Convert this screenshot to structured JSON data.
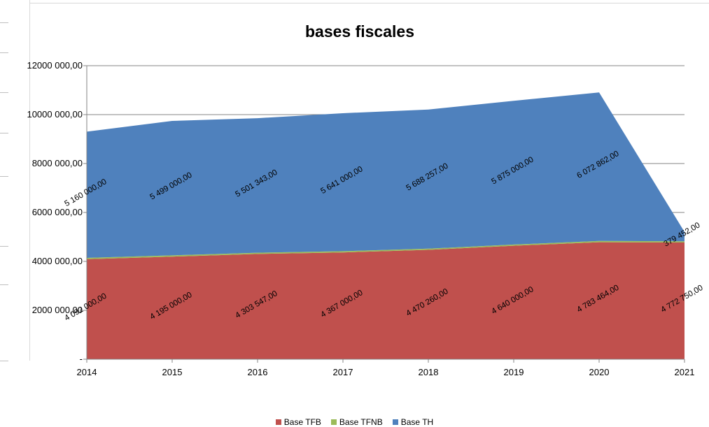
{
  "chart_data": {
    "type": "area",
    "stacked": true,
    "title": "bases fiscales",
    "categories": [
      "2014",
      "2015",
      "2016",
      "2017",
      "2018",
      "2019",
      "2020",
      "2021"
    ],
    "y_ticks": [
      "-",
      "2000 000,00",
      "4000 000,00",
      "6000 000,00",
      "8000 000,00",
      "10000 000,00",
      "12000 000,00"
    ],
    "ylim": [
      0,
      12000000
    ],
    "grid": true,
    "legend_position": "bottom",
    "series": [
      {
        "name": "Base TFB",
        "color": "#c0504d",
        "values": [
          4092000,
          4195000,
          4303547,
          4367000,
          4470260,
          4640000,
          4783464,
          4772750
        ],
        "labels": [
          "4 092 000,00",
          "4 195 000,00",
          "4 303 547,00",
          "4 367 000,00",
          "4 470 260,00",
          "4 640 000,00",
          "4 783 464,00",
          "4 772 750,00"
        ]
      },
      {
        "name": "Base TFNB",
        "color": "#9bbb59",
        "values": [
          50000,
          50000,
          50000,
          50000,
          50000,
          50000,
          50000,
          50000
        ],
        "labels": []
      },
      {
        "name": "Base TH",
        "color": "#4f81bd",
        "values": [
          5160000,
          5499000,
          5501343,
          5641000,
          5688257,
          5875000,
          6072862,
          379452
        ],
        "labels": [
          "5 160 000,00",
          "5 499 000,00",
          "5 501 343,00",
          "5 641 000,00",
          "5 688 257,00",
          "5 875 000,00",
          "6 072 862,00",
          "379 452,00"
        ]
      }
    ]
  }
}
